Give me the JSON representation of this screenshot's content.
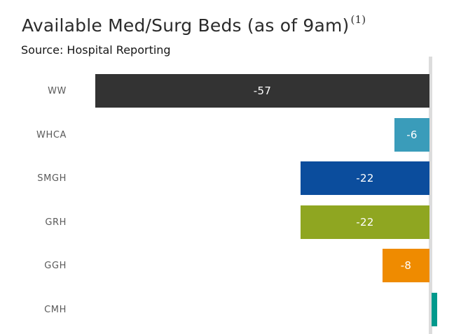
{
  "header": {
    "title": "Available Med/Surg Beds (as of 9am)",
    "footnote_marker": "(1)",
    "subtitle": "Source: Hospital Reporting"
  },
  "chart_data": {
    "type": "bar",
    "orientation": "horizontal",
    "title": "Available Med/Surg Beds (as of 9am)",
    "subtitle": "Source: Hospital Reporting",
    "categories": [
      "WW",
      "WHCA",
      "SMGH",
      "GRH",
      "GGH",
      "CMH"
    ],
    "values": [
      -57,
      -6,
      -22,
      -22,
      -8,
      1
    ],
    "bar_labels": [
      "-57",
      "-6",
      "-22",
      "-22",
      "-8",
      ""
    ],
    "bar_colors": [
      "#333333",
      "#3a9cba",
      "#0b4d9d",
      "#8fa621",
      "#ef8b00",
      "#00998c"
    ],
    "label_text_color": "#ffffff",
    "category_text_color": "#5a5a5a",
    "axis_line_color": "#dcdcdc",
    "xlim": [
      -57,
      6.6
    ],
    "baseline_x": 0,
    "grid": false,
    "legend": false,
    "value_axis_ticks_visible": false
  }
}
